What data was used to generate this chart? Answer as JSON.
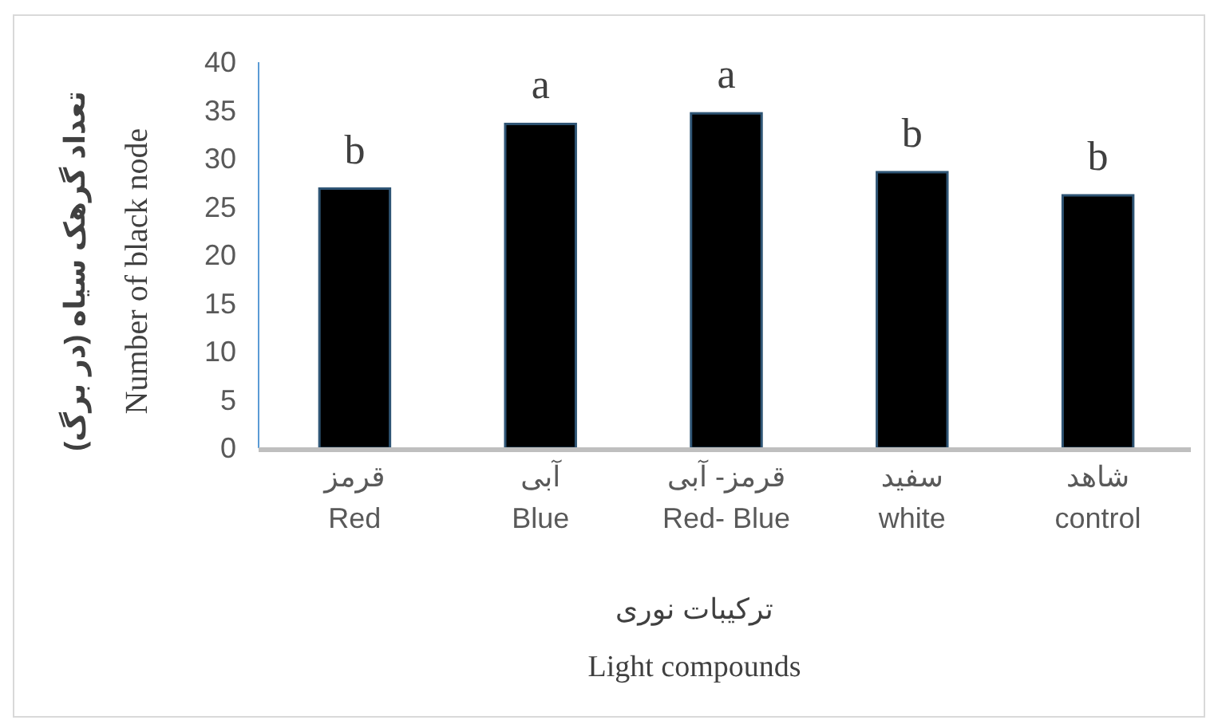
{
  "chart_data": {
    "type": "bar",
    "xlabel": "ترکیبات نوری\nLight compounds",
    "ylabel": "تعداد گرهک سیاه (در برگ)\nNumber of black node",
    "categories": [
      "قرمز\nRed",
      "آبی\nBlue",
      "قرمز- آبی\nRed- Blue",
      "سفید\nwhite",
      "شاهد\ncontrol"
    ],
    "values": [
      26.9,
      33.6,
      34.7,
      28.6,
      26.2
    ],
    "color": "#000000",
    "ylim": [
      0,
      40
    ],
    "yticks": [
      0,
      5,
      10,
      15,
      20,
      25,
      30,
      35,
      40
    ],
    "grid": false,
    "annotations": [
      {
        "text": "b",
        "x": "قرمز\nRed",
        "y": 26.9
      },
      {
        "text": "a",
        "x": "آبی\nBlue",
        "y": 33.6
      },
      {
        "text": "a",
        "x": "قرمز- آبی\nRed- Blue",
        "y": 34.7
      },
      {
        "text": "b",
        "x": "سفید\nwhite",
        "y": 28.6
      },
      {
        "text": "b",
        "x": "شاهد\ncontrol",
        "y": 26.2
      }
    ]
  }
}
